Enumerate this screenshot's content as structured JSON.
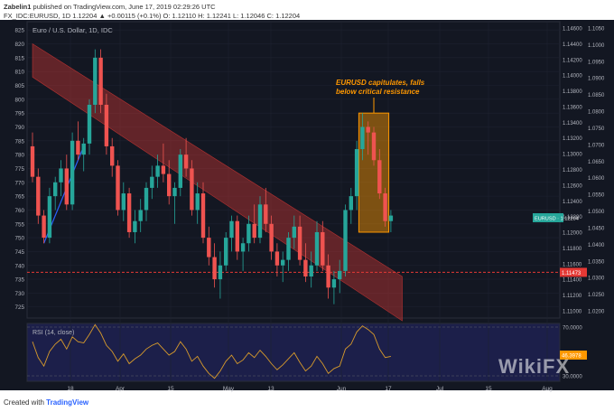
{
  "header": {
    "line1": {
      "author": "Zabelin1",
      "text": " published on TradingView.com, June 17, 2019 02:29:26 UTC"
    },
    "line2": "FX_IDC:EURUSD, 1D  1.12204  ▲ +0.00115 (+0.1%)  O: 1.12110  H: 1.12241  L: 1.12046  C: 1.12204"
  },
  "footer": {
    "prefix": "Created with ",
    "brand": "TradingView"
  },
  "watermark": "WikiFX",
  "chart_data": [
    {
      "type": "candlestick",
      "title": "Euro / U.S. Dollar, 1D, IDC",
      "left_axis": {
        "ticks": [
          725,
          730,
          735,
          740,
          745,
          750,
          755,
          760,
          765,
          770,
          775,
          780,
          785,
          790,
          795,
          800,
          805,
          810,
          815,
          820,
          825
        ]
      },
      "right_axis_price": {
        "ticks": [
          "1.11000",
          "1.11200",
          "1.11400",
          "1.11600",
          "1.11800",
          "1.12000",
          "1.12200",
          "1.12400",
          "1.12600",
          "1.12800",
          "1.13000",
          "1.13200",
          "1.13400",
          "1.13600",
          "1.13800",
          "1.14000",
          "1.14200",
          "1.14400",
          "1.14600"
        ]
      },
      "right_axis_secondary": {
        "ticks": [
          "1.0200",
          "1.0250",
          "1.0300",
          "1.0350",
          "1.0400",
          "1.0450",
          "1.0500",
          "1.0550",
          "1.0600",
          "1.0650",
          "1.0700",
          "1.0750",
          "1.0800",
          "1.0850",
          "1.0900",
          "1.0950",
          "1.1000",
          "1.1050"
        ]
      },
      "x_ticks": [
        "18",
        "Apr",
        "15",
        "May",
        "13",
        "Jun",
        "17",
        "Jul",
        "15",
        "Aug"
      ],
      "candles": [
        [
          783,
          788,
          770,
          772
        ],
        [
          772,
          775,
          755,
          758
        ],
        [
          758,
          760,
          748,
          750
        ],
        [
          750,
          768,
          748,
          765
        ],
        [
          765,
          772,
          760,
          770
        ],
        [
          770,
          778,
          765,
          775
        ],
        [
          775,
          780,
          760,
          762
        ],
        [
          762,
          788,
          760,
          785
        ],
        [
          785,
          792,
          778,
          780
        ],
        [
          780,
          786,
          774,
          784
        ],
        [
          784,
          800,
          780,
          798
        ],
        [
          798,
          818,
          795,
          815
        ],
        [
          815,
          818,
          795,
          798
        ],
        [
          798,
          802,
          780,
          783
        ],
        [
          783,
          786,
          772,
          776
        ],
        [
          776,
          778,
          758,
          760
        ],
        [
          760,
          770,
          756,
          766
        ],
        [
          766,
          768,
          750,
          752
        ],
        [
          752,
          760,
          748,
          756
        ],
        [
          756,
          764,
          752,
          760
        ],
        [
          760,
          770,
          756,
          768
        ],
        [
          768,
          776,
          764,
          772
        ],
        [
          772,
          780,
          768,
          776
        ],
        [
          776,
          784,
          770,
          773
        ],
        [
          773,
          778,
          762,
          765
        ],
        [
          765,
          770,
          755,
          768
        ],
        [
          768,
          782,
          765,
          780
        ],
        [
          780,
          786,
          772,
          775
        ],
        [
          775,
          778,
          758,
          760
        ],
        [
          760,
          770,
          755,
          766
        ],
        [
          766,
          770,
          748,
          750
        ],
        [
          750,
          754,
          740,
          743
        ],
        [
          743,
          748,
          732,
          735
        ],
        [
          735,
          745,
          728,
          740
        ],
        [
          740,
          752,
          738,
          750
        ],
        [
          750,
          758,
          745,
          756
        ],
        [
          756,
          758,
          742,
          745
        ],
        [
          745,
          750,
          738,
          748
        ],
        [
          748,
          758,
          745,
          755
        ],
        [
          755,
          762,
          748,
          750
        ],
        [
          750,
          765,
          748,
          762
        ],
        [
          762,
          768,
          752,
          755
        ],
        [
          755,
          758,
          742,
          745
        ],
        [
          745,
          748,
          736,
          740
        ],
        [
          740,
          745,
          734,
          742
        ],
        [
          742,
          752,
          738,
          750
        ],
        [
          750,
          758,
          746,
          754
        ],
        [
          754,
          758,
          740,
          742
        ],
        [
          742,
          748,
          734,
          736
        ],
        [
          736,
          745,
          732,
          740
        ],
        [
          740,
          756,
          738,
          752
        ],
        [
          752,
          756,
          738,
          740
        ],
        [
          740,
          744,
          728,
          732
        ],
        [
          732,
          738,
          726,
          735
        ],
        [
          735,
          742,
          730,
          738
        ],
        [
          738,
          762,
          736,
          760
        ],
        [
          760,
          768,
          755,
          765
        ],
        [
          765,
          785,
          760,
          782
        ],
        [
          782,
          795,
          778,
          790
        ],
        [
          790,
          792,
          780,
          788
        ],
        [
          788,
          790,
          776,
          778
        ],
        [
          778,
          782,
          764,
          766
        ],
        [
          766,
          768,
          754,
          756
        ],
        [
          756,
          760,
          752,
          758
        ]
      ],
      "channel": {
        "upper": [
          [
            0,
            820
          ],
          [
            65,
            736
          ]
        ],
        "lower": [
          [
            0,
            808
          ],
          [
            65,
            720
          ]
        ]
      },
      "support_level": 737.5,
      "highlight": {
        "from": 58,
        "to": 62,
        "high": 795,
        "low": 752
      },
      "annotation": [
        "EURUSD capitulates, falls",
        "below critical resistance"
      ],
      "last_price_label": "EURUSD · 1.12204",
      "support_label": "1.11473"
    },
    {
      "type": "line",
      "title": "RSI (14, close)",
      "y_ticks": [
        "70.0000",
        "30.0000"
      ],
      "series": [
        {
          "name": "RSI",
          "values": [
            58,
            45,
            38,
            50,
            56,
            60,
            52,
            62,
            58,
            57,
            64,
            72,
            65,
            55,
            50,
            42,
            48,
            40,
            44,
            47,
            52,
            55,
            57,
            52,
            47,
            50,
            58,
            52,
            42,
            46,
            38,
            32,
            28,
            34,
            42,
            47,
            40,
            43,
            49,
            45,
            51,
            46,
            40,
            35,
            39,
            44,
            49,
            41,
            34,
            38,
            46,
            40,
            32,
            36,
            38,
            52,
            56,
            66,
            71,
            68,
            64,
            52,
            45,
            46
          ]
        }
      ],
      "last_value_label": "46.3978"
    }
  ]
}
